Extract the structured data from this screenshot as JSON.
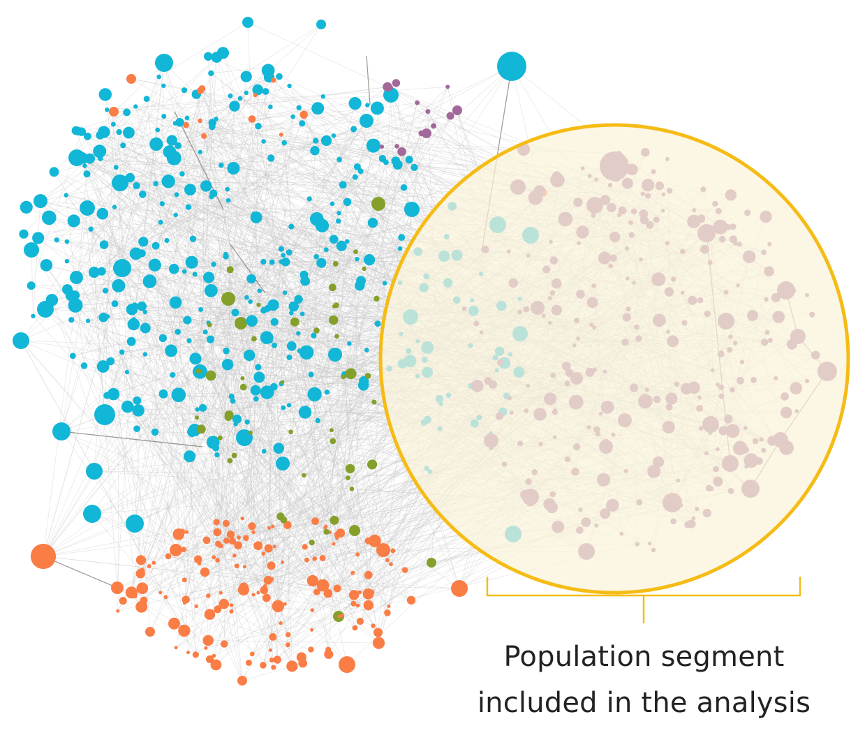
{
  "annotation": {
    "line1": "Population segment",
    "line2": "included in the analysis"
  },
  "colors": {
    "community_blue": "#12b6d6",
    "community_orange": "#fa7d46",
    "community_green": "#84a02a",
    "community_purple": "#a2689a",
    "edge": "#c8c8c8",
    "highlight_ring": "#f5bc16",
    "highlight_fill": "#fbf3d9"
  },
  "communities": [
    {
      "name": "blue",
      "color_key": "community_blue"
    },
    {
      "name": "orange",
      "color_key": "community_orange"
    },
    {
      "name": "green",
      "color_key": "community_green"
    },
    {
      "name": "purple",
      "color_key": "community_purple"
    }
  ]
}
